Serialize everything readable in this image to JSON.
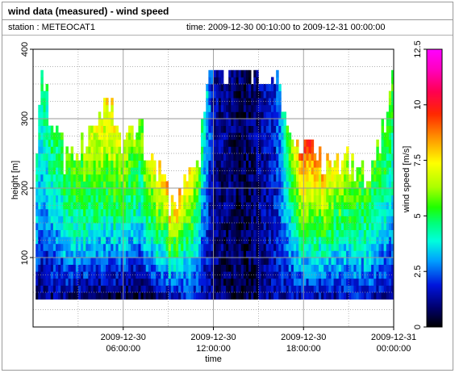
{
  "header": {
    "title": "wind data (measured) - wind speed",
    "station": "station : METEOCAT1",
    "time_range": "time: 2009-12-30 00:10:00 to 2009-12-31 00:00:00"
  },
  "chart_data": {
    "type": "heatmap",
    "title": "wind data (measured) - wind speed",
    "xlabel": "time",
    "ylabel": "height [m]",
    "colorbar_label": "wind speed [m/s]",
    "xlim": [
      "2009-12-30 00:10:00",
      "2009-12-31 00:00:00"
    ],
    "ylim": [
      0,
      400
    ],
    "color_range": [
      0,
      12.5
    ],
    "x_ticks": [
      {
        "line1": "2009-12-30",
        "line2": "06:00:00",
        "hour": 6
      },
      {
        "line1": "2009-12-30",
        "line2": "12:00:00",
        "hour": 12
      },
      {
        "line1": "2009-12-30",
        "line2": "18:00:00",
        "hour": 18
      },
      {
        "line1": "2009-12-31",
        "line2": "00:00:00",
        "hour": 24
      }
    ],
    "y_ticks": [
      100,
      200,
      300,
      400
    ],
    "colorbar_ticks": [
      "0",
      "2.5",
      "5",
      "7.5",
      "10",
      "12.5"
    ],
    "colorbar_tick_values": [
      0,
      2.5,
      5,
      7.5,
      10,
      12.5
    ],
    "grid": true,
    "data_height_range": [
      40,
      365
    ],
    "time_step_minutes": 10,
    "height_step_m": 10,
    "profile_top_height_by_hour": [
      [
        0.17,
        225
      ],
      [
        0.5,
        365
      ],
      [
        1,
        300
      ],
      [
        2,
        240
      ],
      [
        3,
        250
      ],
      [
        4,
        300
      ],
      [
        5,
        325
      ],
      [
        6,
        250
      ],
      [
        7,
        280
      ],
      [
        8,
        225
      ],
      [
        9,
        180
      ],
      [
        10,
        200
      ],
      [
        11,
        245
      ],
      [
        11.7,
        365
      ],
      [
        16,
        365
      ],
      [
        17,
        280
      ],
      [
        18,
        250
      ],
      [
        19,
        230
      ],
      [
        20,
        225
      ],
      [
        21,
        230
      ],
      [
        22,
        220
      ],
      [
        23,
        250
      ],
      [
        24,
        365
      ]
    ],
    "wind_speed_profiles": [
      {
        "hour": 0.17,
        "low": 1.0,
        "mid": 3.0,
        "high": 4.2
      },
      {
        "hour": 2,
        "low": 1.2,
        "mid": 3.8,
        "high": 5.5
      },
      {
        "hour": 5,
        "low": 0.8,
        "mid": 4.8,
        "high": 7.8
      },
      {
        "hour": 7,
        "low": 0.6,
        "mid": 3.8,
        "high": 6.0
      },
      {
        "hour": 9,
        "low": 1.5,
        "mid": 4.8,
        "high": 8.5
      },
      {
        "hour": 10.5,
        "low": 2.0,
        "mid": 4.5,
        "high": 8.0
      },
      {
        "hour": 12,
        "low": 1.0,
        "mid": 1.2,
        "high": 1.4
      },
      {
        "hour": 14,
        "low": 0.5,
        "mid": 0.6,
        "high": 0.7
      },
      {
        "hour": 16,
        "low": 1.5,
        "mid": 1.8,
        "high": 1.8
      },
      {
        "hour": 18,
        "low": 1.5,
        "mid": 5.5,
        "high": 9.8
      },
      {
        "hour": 20,
        "low": 1.5,
        "mid": 4.5,
        "high": 7.5
      },
      {
        "hour": 22,
        "low": 1.8,
        "mid": 4.0,
        "high": 5.8
      },
      {
        "hour": 24,
        "low": 1.2,
        "mid": 3.8,
        "high": 5.5
      }
    ]
  }
}
